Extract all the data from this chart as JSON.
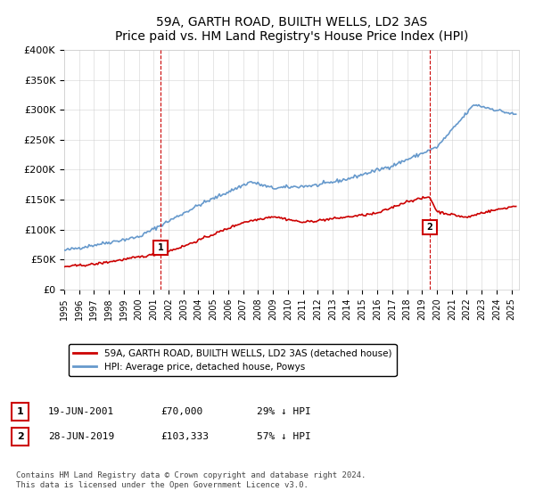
{
  "title": "59A, GARTH ROAD, BUILTH WELLS, LD2 3AS",
  "subtitle": "Price paid vs. HM Land Registry's House Price Index (HPI)",
  "ylabel": "",
  "ylim": [
    0,
    400000
  ],
  "yticks": [
    0,
    50000,
    100000,
    150000,
    200000,
    250000,
    300000,
    350000,
    400000
  ],
  "ytick_labels": [
    "£0",
    "£50K",
    "£100K",
    "£150K",
    "£200K",
    "£250K",
    "£300K",
    "£350K",
    "£400K"
  ],
  "xlim_start": 1995.0,
  "xlim_end": 2025.5,
  "hpi_color": "#6699cc",
  "price_color": "#cc0000",
  "dashed_color": "#cc0000",
  "marker1_x": 2001.47,
  "marker1_y": 70000,
  "marker2_x": 2019.49,
  "marker2_y": 103333,
  "legend_label1": "59A, GARTH ROAD, BUILTH WELLS, LD2 3AS (detached house)",
  "legend_label2": "HPI: Average price, detached house, Powys",
  "table_row1": [
    "1",
    "19-JUN-2001",
    "£70,000",
    "29% ↓ HPI"
  ],
  "table_row2": [
    "2",
    "28-JUN-2019",
    "£103,333",
    "57% ↓ HPI"
  ],
  "footnote": "Contains HM Land Registry data © Crown copyright and database right 2024.\nThis data is licensed under the Open Government Licence v3.0.",
  "bg_color": "#ffffff",
  "grid_color": "#cccccc"
}
